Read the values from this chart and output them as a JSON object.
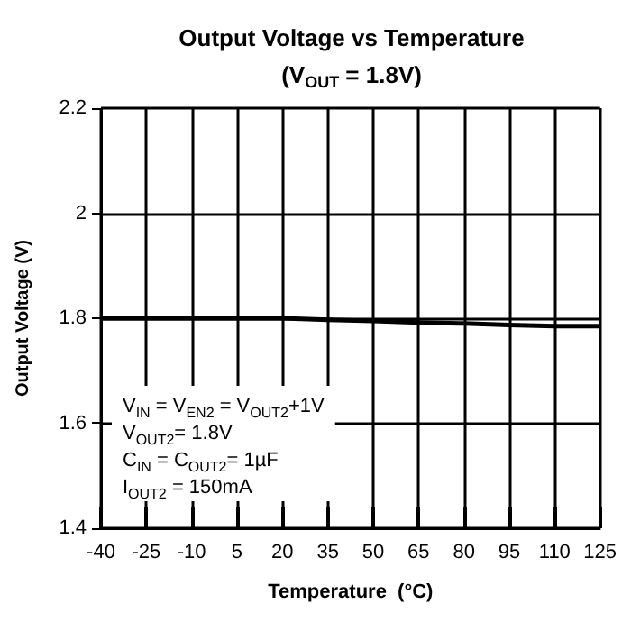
{
  "chart_data": {
    "type": "line",
    "title": "Output Voltage vs Temperature",
    "subtitle": "(V$_{OUT}$ = 1.8V)",
    "xlabel": "Temperature  (°C)",
    "ylabel": "Output Voltage (V)",
    "x": [
      -40,
      -25,
      -10,
      5,
      20,
      35,
      50,
      65,
      80,
      95,
      110,
      125
    ],
    "series": [
      {
        "color": "#000000",
        "values": [
          1.8,
          1.8,
          1.8,
          1.8,
          1.8,
          1.797,
          1.795,
          1.792,
          1.79,
          1.787,
          1.785,
          1.785
        ]
      }
    ],
    "xlim": [
      -40,
      125
    ],
    "xticks": [
      -40,
      -25,
      -10,
      5,
      20,
      35,
      50,
      65,
      80,
      95,
      110,
      125
    ],
    "ylim": [
      1.4,
      2.2
    ],
    "yticks": [
      1.4,
      1.6,
      1.8,
      2,
      2.2
    ],
    "annotations": [
      "V$_{IN}$ = V$_{EN2}$ = V$_{OUT2}$+1V",
      "V$_{OUT2}$= 1.8V",
      "C$_{IN}$ = C$_{OUT2}$= 1µF",
      "I$_{OUT2}$ = 150mA"
    ],
    "grid": true,
    "marker": "none",
    "line_style": "solid"
  }
}
